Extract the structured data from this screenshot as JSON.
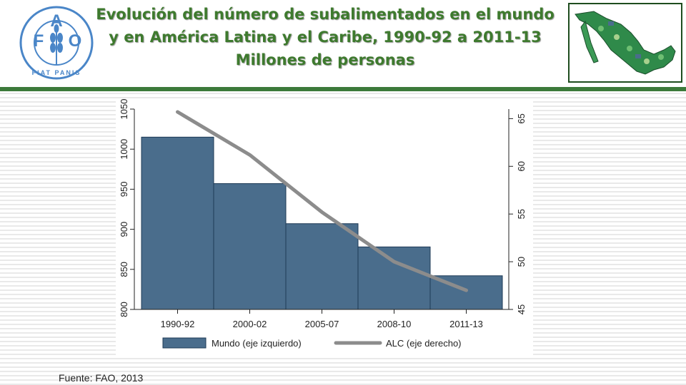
{
  "header": {
    "title_line1": "Evolución del número de subalimentados en el mundo",
    "title_line2": "y en América Latina y el Caribe, 1990-92 a 2011-13",
    "title_line3": "Millones de personas",
    "logo": {
      "letters": [
        "F",
        "A",
        "O"
      ],
      "motto": "FIAT PANIS",
      "color": "#4a86c8",
      "icon": "fao-logo-icon"
    },
    "map_icon": "mexico-map-icon"
  },
  "chart_data": {
    "type": "bar",
    "categories": [
      "1990-92",
      "2000-02",
      "2005-07",
      "2008-10",
      "2011-13"
    ],
    "series": [
      {
        "name": "Mundo (eje izquierdo)",
        "type": "bar",
        "axis": "left",
        "color": "#4a6d8c",
        "values": [
          1015,
          957,
          907,
          878,
          842
        ]
      },
      {
        "name": "ALC (eje derecho)",
        "type": "line",
        "axis": "right",
        "color": "#8c8c8c",
        "values": [
          65.7,
          61.2,
          55.2,
          50.0,
          47.0
        ]
      }
    ],
    "ylim_left": [
      800,
      1050
    ],
    "yticks_left": [
      "800",
      "850",
      "900",
      "950",
      "1000",
      "1050"
    ],
    "ylim_right": [
      45,
      66
    ],
    "yticks_right": [
      "45",
      "50",
      "55",
      "60",
      "65"
    ],
    "legend_position": "bottom",
    "grid": false
  },
  "footer": {
    "source": "Fuente: FAO, 2013"
  }
}
